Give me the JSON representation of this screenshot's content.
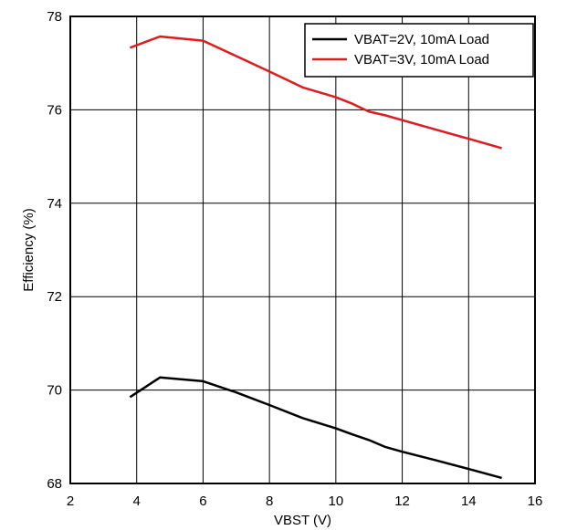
{
  "chart_data": {
    "type": "line",
    "title": "",
    "xlabel": "VBST (V)",
    "ylabel": "Efficiency (%)",
    "xlim": [
      2,
      16
    ],
    "ylim": [
      68,
      78
    ],
    "xticks": [
      2,
      4,
      6,
      8,
      10,
      12,
      14,
      16
    ],
    "yticks": [
      68,
      70,
      72,
      74,
      76,
      78
    ],
    "grid": true,
    "legend_position": "top-right",
    "series": [
      {
        "name": "VBAT=2V, 10mA Load",
        "color": "#000000",
        "x": [
          3.8,
          4.7,
          6.0,
          7.0,
          8.0,
          9.0,
          10.0,
          10.5,
          11.0,
          11.5,
          12.0,
          13.0,
          14.0,
          15.0
        ],
        "y": [
          69.85,
          70.27,
          70.19,
          69.95,
          69.68,
          69.4,
          69.18,
          69.05,
          68.93,
          68.78,
          68.68,
          68.5,
          68.31,
          68.12
        ]
      },
      {
        "name": "VBAT=3V, 10mA Load",
        "color": "#e31a1c",
        "x": [
          3.8,
          4.7,
          6.0,
          7.0,
          8.0,
          9.0,
          10.0,
          10.5,
          11.0,
          11.5,
          12.0,
          13.0,
          14.0,
          15.0
        ],
        "y": [
          77.33,
          77.57,
          77.48,
          77.15,
          76.82,
          76.48,
          76.27,
          76.13,
          75.96,
          75.88,
          75.78,
          75.58,
          75.38,
          75.18
        ]
      }
    ]
  }
}
